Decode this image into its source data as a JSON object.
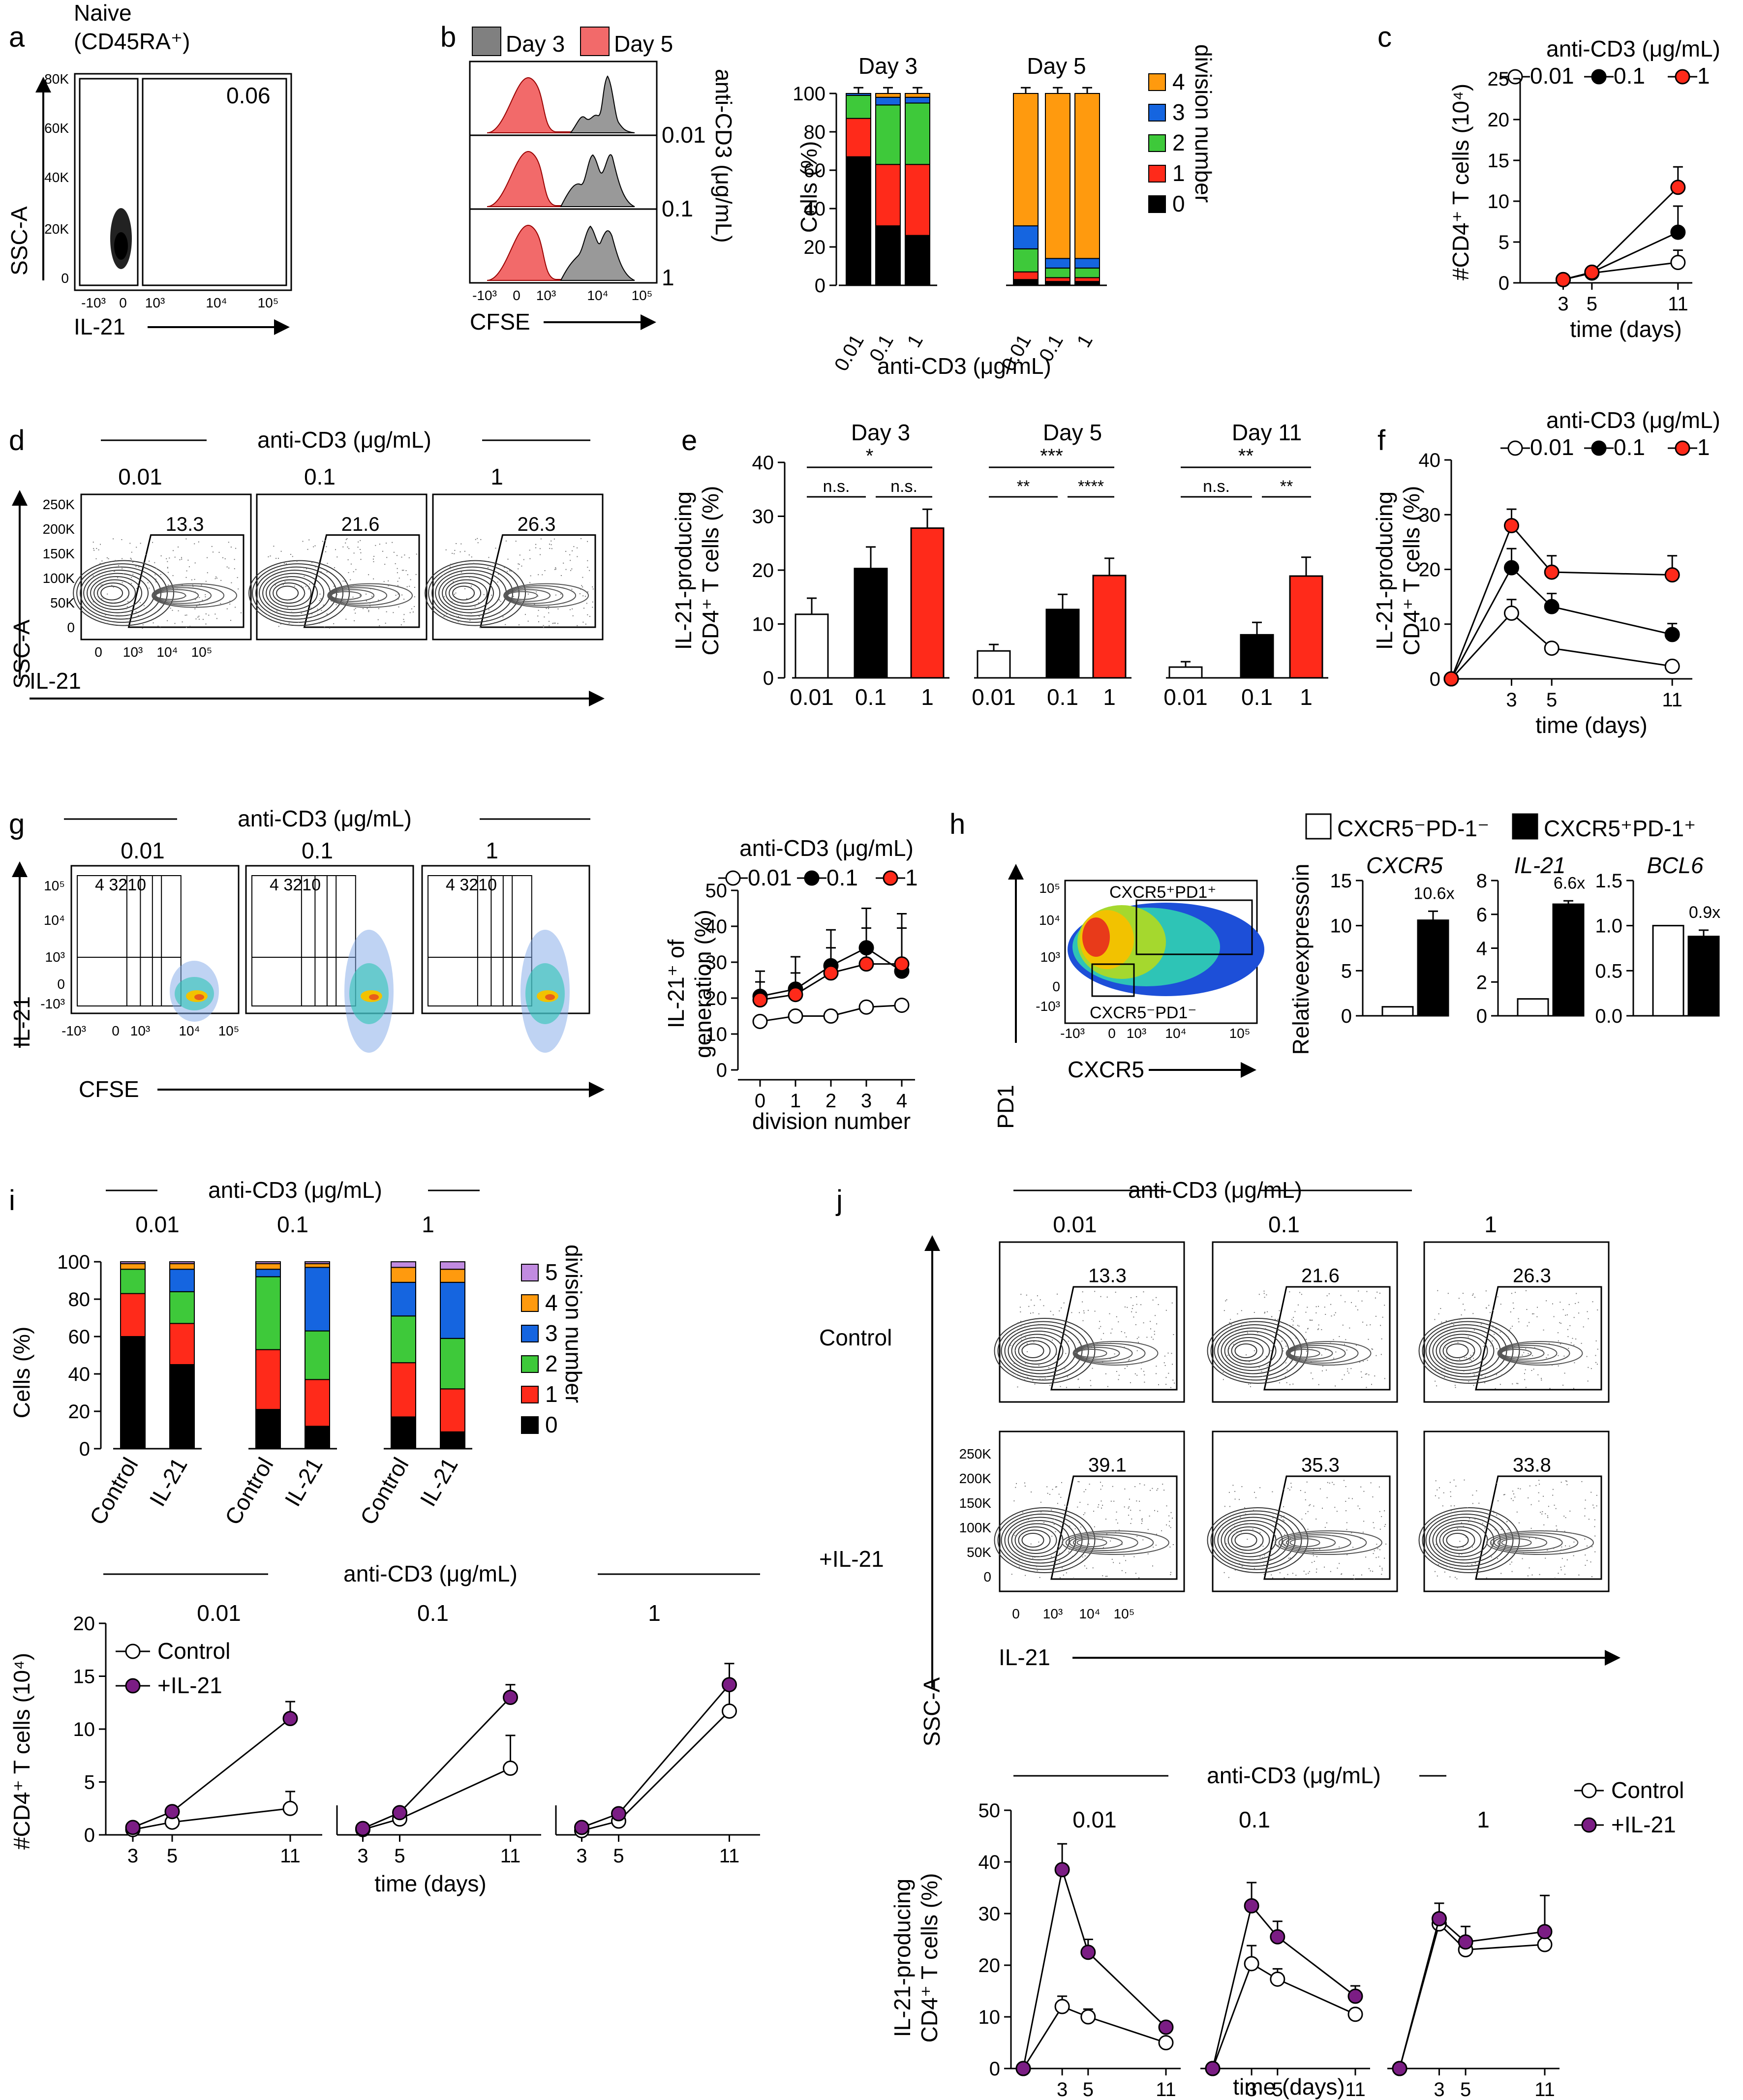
{
  "colors": {
    "black": "#000000",
    "red": "#ff2a1a",
    "green": "#3ec93a",
    "blue": "#1565e0",
    "orange": "#ff9a0e",
    "purple": "#c18be0",
    "gray": "#9a9a9a",
    "pink": "#f26a6a",
    "plum": "#7b1d84",
    "white": "#ffffff"
  },
  "anticd3": "anti-CD3 (μg/mL)",
  "anticd3_rot": "anti-CD3 (μg/mL)",
  "doses": [
    "0.01",
    "0.1",
    "1"
  ],
  "ssca": "SSC-A",
  "il21": "IL-21",
  "cfse": "CFSE",
  "cells_pct": "Cells (%)",
  "cd4_count": "#CD4⁺ T cells (10⁴)",
  "il21_producing_1": "IL-21-producing",
  "il21_producing_2": "CD4⁺ T cells (%)",
  "time_days": "time (days)",
  "division_number": "division number",
  "legend_div_4": [
    "4",
    "3",
    "2",
    "1",
    "0"
  ],
  "legend_div_5": [
    "5",
    "4",
    "3",
    "2",
    "1",
    "0"
  ],
  "flow_ticks_x": [
    "-10³",
    "0",
    "10³",
    "10⁴",
    "10⁵"
  ],
  "ssc_ticks": [
    "250K",
    "200K",
    "150K",
    "100K",
    "50K",
    "0"
  ],
  "panels": {
    "a": "a",
    "b": "b",
    "c": "c",
    "d": "d",
    "e": "e",
    "f": "f",
    "g": "g",
    "h": "h",
    "i": "i",
    "j": "j"
  },
  "panel_a": {
    "title_1": "Naive",
    "title_2": "(CD45RA⁺)",
    "gate_value": "0.06",
    "y_ticks": [
      "80K",
      "60K",
      "40K",
      "20K",
      "0"
    ],
    "x_ticks": [
      "-10³",
      "0",
      "10³",
      "10⁴",
      "10⁵"
    ]
  },
  "panel_b": {
    "legend_day3": "Day 3",
    "legend_day5": "Day 5",
    "day3_title": "Day 3",
    "day5_title": "Day 5",
    "x_ticks": [
      "-10³",
      "0",
      "10³",
      "10⁴",
      "10⁵"
    ]
  },
  "panel_d": {
    "gates": [
      "13.3",
      "21.6",
      "26.3"
    ]
  },
  "panel_e": {
    "titles": [
      "Day 3",
      "Day 5",
      "Day 11"
    ],
    "sig": [
      [
        "*",
        "n.s.",
        "n.s."
      ],
      [
        "***",
        "**",
        "****"
      ],
      [
        "**",
        "n.s.",
        "**"
      ]
    ]
  },
  "panel_g": {
    "gate_nums": "4   3210",
    "y_ticks": [
      "10⁵",
      "10⁴",
      "10³",
      "0",
      "-10³"
    ],
    "x_ticks": [
      "-10³",
      "0",
      "10³",
      "10⁴",
      "10⁵"
    ]
  },
  "panel_h": {
    "legend_neg": "CXCR5⁻PD-1⁻",
    "legend_pos": "CXCR5⁺PD-1⁺",
    "ylabel": "Relativeexpressoin",
    "pd1": "PD1",
    "cxcr5": "CXCR5",
    "gate_pos": "CXCR5⁺PD1⁺",
    "gate_neg": "CXCR5⁻PD1⁻",
    "x_ticks": [
      "-10³",
      "0",
      "10³",
      "10⁴",
      "10⁵"
    ],
    "y_ticks": [
      "10⁵",
      "10⁴",
      "10³",
      "0",
      "-10³"
    ]
  },
  "panel_i": {
    "row_labels": [
      "Control",
      "IL-21"
    ]
  },
  "panel_j": {
    "row_control": "Control",
    "row_il21": "+IL-21",
    "gates_control": [
      "13.3",
      "21.6",
      "26.3"
    ],
    "gates_il21": [
      "39.1",
      "35.3",
      "33.8"
    ]
  },
  "chart_data": [
    {
      "id": "b_bars",
      "type": "bar",
      "stacked": true,
      "title": "Day 3 / Day 5",
      "xlabel": "anti-CD3 (μg/mL)",
      "ylabel": "Cells (%)",
      "ylim": [
        0,
        100
      ],
      "yticks": [
        0,
        20,
        40,
        60,
        80,
        100
      ],
      "categories": [
        "0.01",
        "0.1",
        "1"
      ],
      "groups": [
        {
          "name": "Day 3",
          "stacks": [
            [
              67,
              20,
              12,
              1,
              0
            ],
            [
              31,
              32,
              31,
              4,
              2
            ],
            [
              26,
              37,
              32,
              3,
              2
            ]
          ]
        },
        {
          "name": "Day 5",
          "stacks": [
            [
              3,
              4,
              12,
              12,
              69
            ],
            [
              2,
              2,
              5,
              5,
              86
            ],
            [
              2,
              2,
              5,
              5,
              86
            ]
          ]
        }
      ],
      "legend": {
        "title": "division number",
        "entries": [
          "4",
          "3",
          "2",
          "1",
          "0"
        ]
      }
    },
    {
      "id": "c",
      "type": "line",
      "legend_title": "anti-CD3 (μg/mL)",
      "xlabel": "time (days)",
      "ylabel": "#CD4⁺ T cells (10⁴)",
      "ylim": [
        0,
        25
      ],
      "yticks": [
        0,
        5,
        10,
        15,
        20,
        25
      ],
      "xlim": [
        0,
        12
      ],
      "xticks": [
        3,
        5,
        11
      ],
      "series": [
        {
          "name": "0.01",
          "x": [
            3,
            5,
            11
          ],
          "y": [
            0.4,
            1.2,
            2.5
          ],
          "err": [
            0.1,
            0.3,
            1.5
          ]
        },
        {
          "name": "0.1",
          "x": [
            3,
            5,
            11
          ],
          "y": [
            0.4,
            1.3,
            6.2
          ],
          "err": [
            0.1,
            0.3,
            3.2
          ]
        },
        {
          "name": "1",
          "x": [
            3,
            5,
            11
          ],
          "y": [
            0.4,
            1.3,
            11.7
          ],
          "err": [
            0.1,
            0.3,
            2.5
          ]
        }
      ]
    },
    {
      "id": "e",
      "type": "bar",
      "xlabel": "",
      "ylabel": "IL-21-producing CD4⁺ T cells (%)",
      "ylim": [
        0,
        40
      ],
      "yticks": [
        0,
        10,
        20,
        30,
        40
      ],
      "categories": [
        "0.01",
        "0.1",
        "1"
      ],
      "series": [
        {
          "name": "Day 3",
          "values": [
            11.8,
            20.3,
            27.8
          ],
          "err": [
            3,
            4,
            3.5
          ]
        },
        {
          "name": "Day 5",
          "values": [
            5.0,
            12.7,
            19.0
          ],
          "err": [
            1.2,
            2.8,
            3.2
          ]
        },
        {
          "name": "Day 11",
          "values": [
            2.0,
            8.0,
            18.9
          ],
          "err": [
            1,
            2.3,
            3.5
          ]
        }
      ]
    },
    {
      "id": "f",
      "type": "line",
      "legend_title": "anti-CD3 (μg/mL)",
      "xlabel": "time (days)",
      "ylabel": "IL-21-producing CD4⁺ T cells (%)",
      "ylim": [
        0,
        40
      ],
      "yticks": [
        0,
        10,
        20,
        30,
        40
      ],
      "xlim": [
        0,
        12
      ],
      "xticks": [
        3,
        5,
        11
      ],
      "series": [
        {
          "name": "0.01",
          "x": [
            0,
            3,
            5,
            11
          ],
          "y": [
            0,
            12,
            5.6,
            2.3
          ],
          "err": [
            0,
            2.5,
            0.8,
            0.5
          ]
        },
        {
          "name": "0.1",
          "x": [
            0,
            3,
            5,
            11
          ],
          "y": [
            0,
            20.3,
            13.2,
            8.1
          ],
          "err": [
            0,
            3.5,
            2.4,
            2
          ]
        },
        {
          "name": "1",
          "x": [
            0,
            3,
            5,
            11
          ],
          "y": [
            0,
            28,
            19.5,
            19
          ],
          "err": [
            0,
            3,
            3,
            3.5
          ]
        }
      ]
    },
    {
      "id": "g",
      "type": "line",
      "legend_title": "anti-CD3 (μg/mL)",
      "xlabel": "division number",
      "ylabel": "IL-21⁺ of generation (%)",
      "ylim": [
        0,
        50
      ],
      "yticks": [
        0,
        10,
        20,
        30,
        40,
        50
      ],
      "xticks": [
        0,
        1,
        2,
        3,
        4
      ],
      "series": [
        {
          "name": "0.01",
          "x": [
            0,
            1,
            2,
            3,
            4
          ],
          "y": [
            13.5,
            15,
            15,
            17.5,
            18
          ],
          "err": [
            1,
            1,
            1,
            1,
            1
          ]
        },
        {
          "name": "0.1",
          "x": [
            0,
            1,
            2,
            3,
            4
          ],
          "y": [
            20.5,
            22.5,
            29,
            34,
            27.5
          ],
          "err": [
            7,
            9,
            10,
            11,
            12
          ]
        },
        {
          "name": "1",
          "x": [
            0,
            1,
            2,
            3,
            4
          ],
          "y": [
            19.5,
            21,
            27,
            29.5,
            29.5
          ],
          "err": [
            5,
            6,
            7,
            10,
            14
          ]
        }
      ]
    },
    {
      "id": "h",
      "type": "bar",
      "ylabel": "Relativeexpressoin",
      "series_names": [
        "CXCR5⁻PD-1⁻",
        "CXCR5⁺PD-1⁺"
      ],
      "genes": [
        {
          "name": "CXCR5",
          "values": [
            1,
            10.6
          ],
          "err": [
            0,
            1
          ],
          "ylim": [
            0,
            15
          ],
          "yticks": [
            0,
            5,
            10,
            15
          ],
          "annotation": "10.6x"
        },
        {
          "name": "IL-21",
          "values": [
            1,
            6.6
          ],
          "err": [
            0,
            0.2
          ],
          "ylim": [
            0,
            8
          ],
          "yticks": [
            0,
            2,
            4,
            6,
            8
          ],
          "annotation": "6.6x"
        },
        {
          "name": "BCL6",
          "values": [
            1,
            0.88
          ],
          "err": [
            0,
            0.07
          ],
          "ylim": [
            0,
            1.5
          ],
          "yticks": [
            0.0,
            0.5,
            1.0,
            1.5
          ],
          "annotation": "0.9x"
        }
      ]
    },
    {
      "id": "i_bars",
      "type": "bar",
      "stacked": true,
      "ylabel": "Cells (%)",
      "ylim": [
        0,
        100
      ],
      "yticks": [
        0,
        20,
        40,
        60,
        80,
        100
      ],
      "groups": [
        {
          "dose": "0.01",
          "bars": [
            {
              "name": "Control",
              "stack": [
                60,
                23,
                13,
                0,
                3,
                1
              ]
            },
            {
              "name": "IL-21",
              "stack": [
                45,
                22,
                17,
                12,
                3,
                1
              ]
            }
          ]
        },
        {
          "dose": "0.1",
          "bars": [
            {
              "name": "Control",
              "stack": [
                21,
                32,
                39,
                4,
                3,
                1
              ]
            },
            {
              "name": "IL-21",
              "stack": [
                12,
                25,
                26,
                34,
                2,
                1
              ]
            }
          ]
        },
        {
          "dose": "1",
          "bars": [
            {
              "name": "Control",
              "stack": [
                17,
                29,
                25,
                18,
                8,
                3
              ]
            },
            {
              "name": "IL-21",
              "stack": [
                9,
                23,
                27,
                30,
                7,
                4
              ]
            }
          ]
        }
      ],
      "legend": {
        "title": "division number",
        "entries": [
          "5",
          "4",
          "3",
          "2",
          "1",
          "0"
        ]
      }
    },
    {
      "id": "i_lines",
      "type": "line",
      "legend": [
        "Control",
        "+IL-21"
      ],
      "xlabel": "time (days)",
      "ylabel": "#CD4⁺ T cells (10⁴)",
      "ylim": [
        0,
        20
      ],
      "yticks": [
        0,
        5,
        10,
        15,
        20
      ],
      "xticks": [
        3,
        5,
        11
      ],
      "panels": [
        {
          "dose": "0.01",
          "series": [
            {
              "name": "Control",
              "x": [
                3,
                5,
                11
              ],
              "y": [
                0.5,
                1.2,
                2.5
              ],
              "err": [
                0.2,
                0.3,
                1.6
              ]
            },
            {
              "name": "+IL-21",
              "x": [
                3,
                5,
                11
              ],
              "y": [
                0.7,
                2.2,
                11
              ],
              "err": [
                0.2,
                0.3,
                1.6
              ]
            }
          ]
        },
        {
          "dose": "0.1",
          "series": [
            {
              "name": "Control",
              "x": [
                3,
                5,
                11
              ],
              "y": [
                0.5,
                1.5,
                6.3
              ],
              "err": [
                0.2,
                0.3,
                3.1
              ]
            },
            {
              "name": "+IL-21",
              "x": [
                3,
                5,
                11
              ],
              "y": [
                0.6,
                2.1,
                13
              ],
              "err": [
                0.2,
                0.3,
                1.2
              ]
            }
          ]
        },
        {
          "dose": "1",
          "series": [
            {
              "name": "Control",
              "x": [
                3,
                5,
                11
              ],
              "y": [
                0.4,
                1.3,
                11.7
              ],
              "err": [
                0.2,
                0.3,
                2.5
              ]
            },
            {
              "name": "+IL-21",
              "x": [
                3,
                5,
                11
              ],
              "y": [
                0.7,
                2,
                14.2
              ],
              "err": [
                0.2,
                0.3,
                2
              ]
            }
          ]
        }
      ]
    },
    {
      "id": "j_lines",
      "type": "line",
      "legend": [
        "Control",
        "+IL-21"
      ],
      "xlabel": "time (days)",
      "ylabel": "IL-21-producing CD4⁺ T cells (%)",
      "ylim": [
        0,
        50
      ],
      "yticks": [
        0,
        10,
        20,
        30,
        40,
        50
      ],
      "xticks": [
        3,
        5,
        11
      ],
      "panels": [
        {
          "dose": "0.01",
          "series": [
            {
              "name": "Control",
              "x": [
                0,
                3,
                5,
                11
              ],
              "y": [
                0,
                12,
                10,
                5
              ],
              "err": [
                0,
                2,
                1.5,
                1
              ]
            },
            {
              "name": "+IL-21",
              "x": [
                0,
                3,
                5,
                11
              ],
              "y": [
                0,
                38.5,
                22.5,
                8
              ],
              "err": [
                0,
                5,
                2.5,
                1
              ]
            }
          ]
        },
        {
          "dose": "0.1",
          "series": [
            {
              "name": "Control",
              "x": [
                0,
                3,
                5,
                11
              ],
              "y": [
                0,
                20.3,
                17.3,
                10.5
              ],
              "err": [
                0,
                3.5,
                2,
                1
              ]
            },
            {
              "name": "+IL-21",
              "x": [
                0,
                3,
                5,
                11
              ],
              "y": [
                0,
                31.5,
                25.5,
                14
              ],
              "err": [
                0,
                4.5,
                3,
                2
              ]
            }
          ]
        },
        {
          "dose": "1",
          "series": [
            {
              "name": "Control",
              "x": [
                0,
                3,
                5,
                11
              ],
              "y": [
                0,
                28,
                23,
                24
              ],
              "err": [
                0,
                2,
                2,
                3
              ]
            },
            {
              "name": "+IL-21",
              "x": [
                0,
                3,
                5,
                11
              ],
              "y": [
                0,
                29,
                24.5,
                26.5
              ],
              "err": [
                0,
                3,
                3,
                7
              ]
            }
          ]
        }
      ]
    }
  ]
}
